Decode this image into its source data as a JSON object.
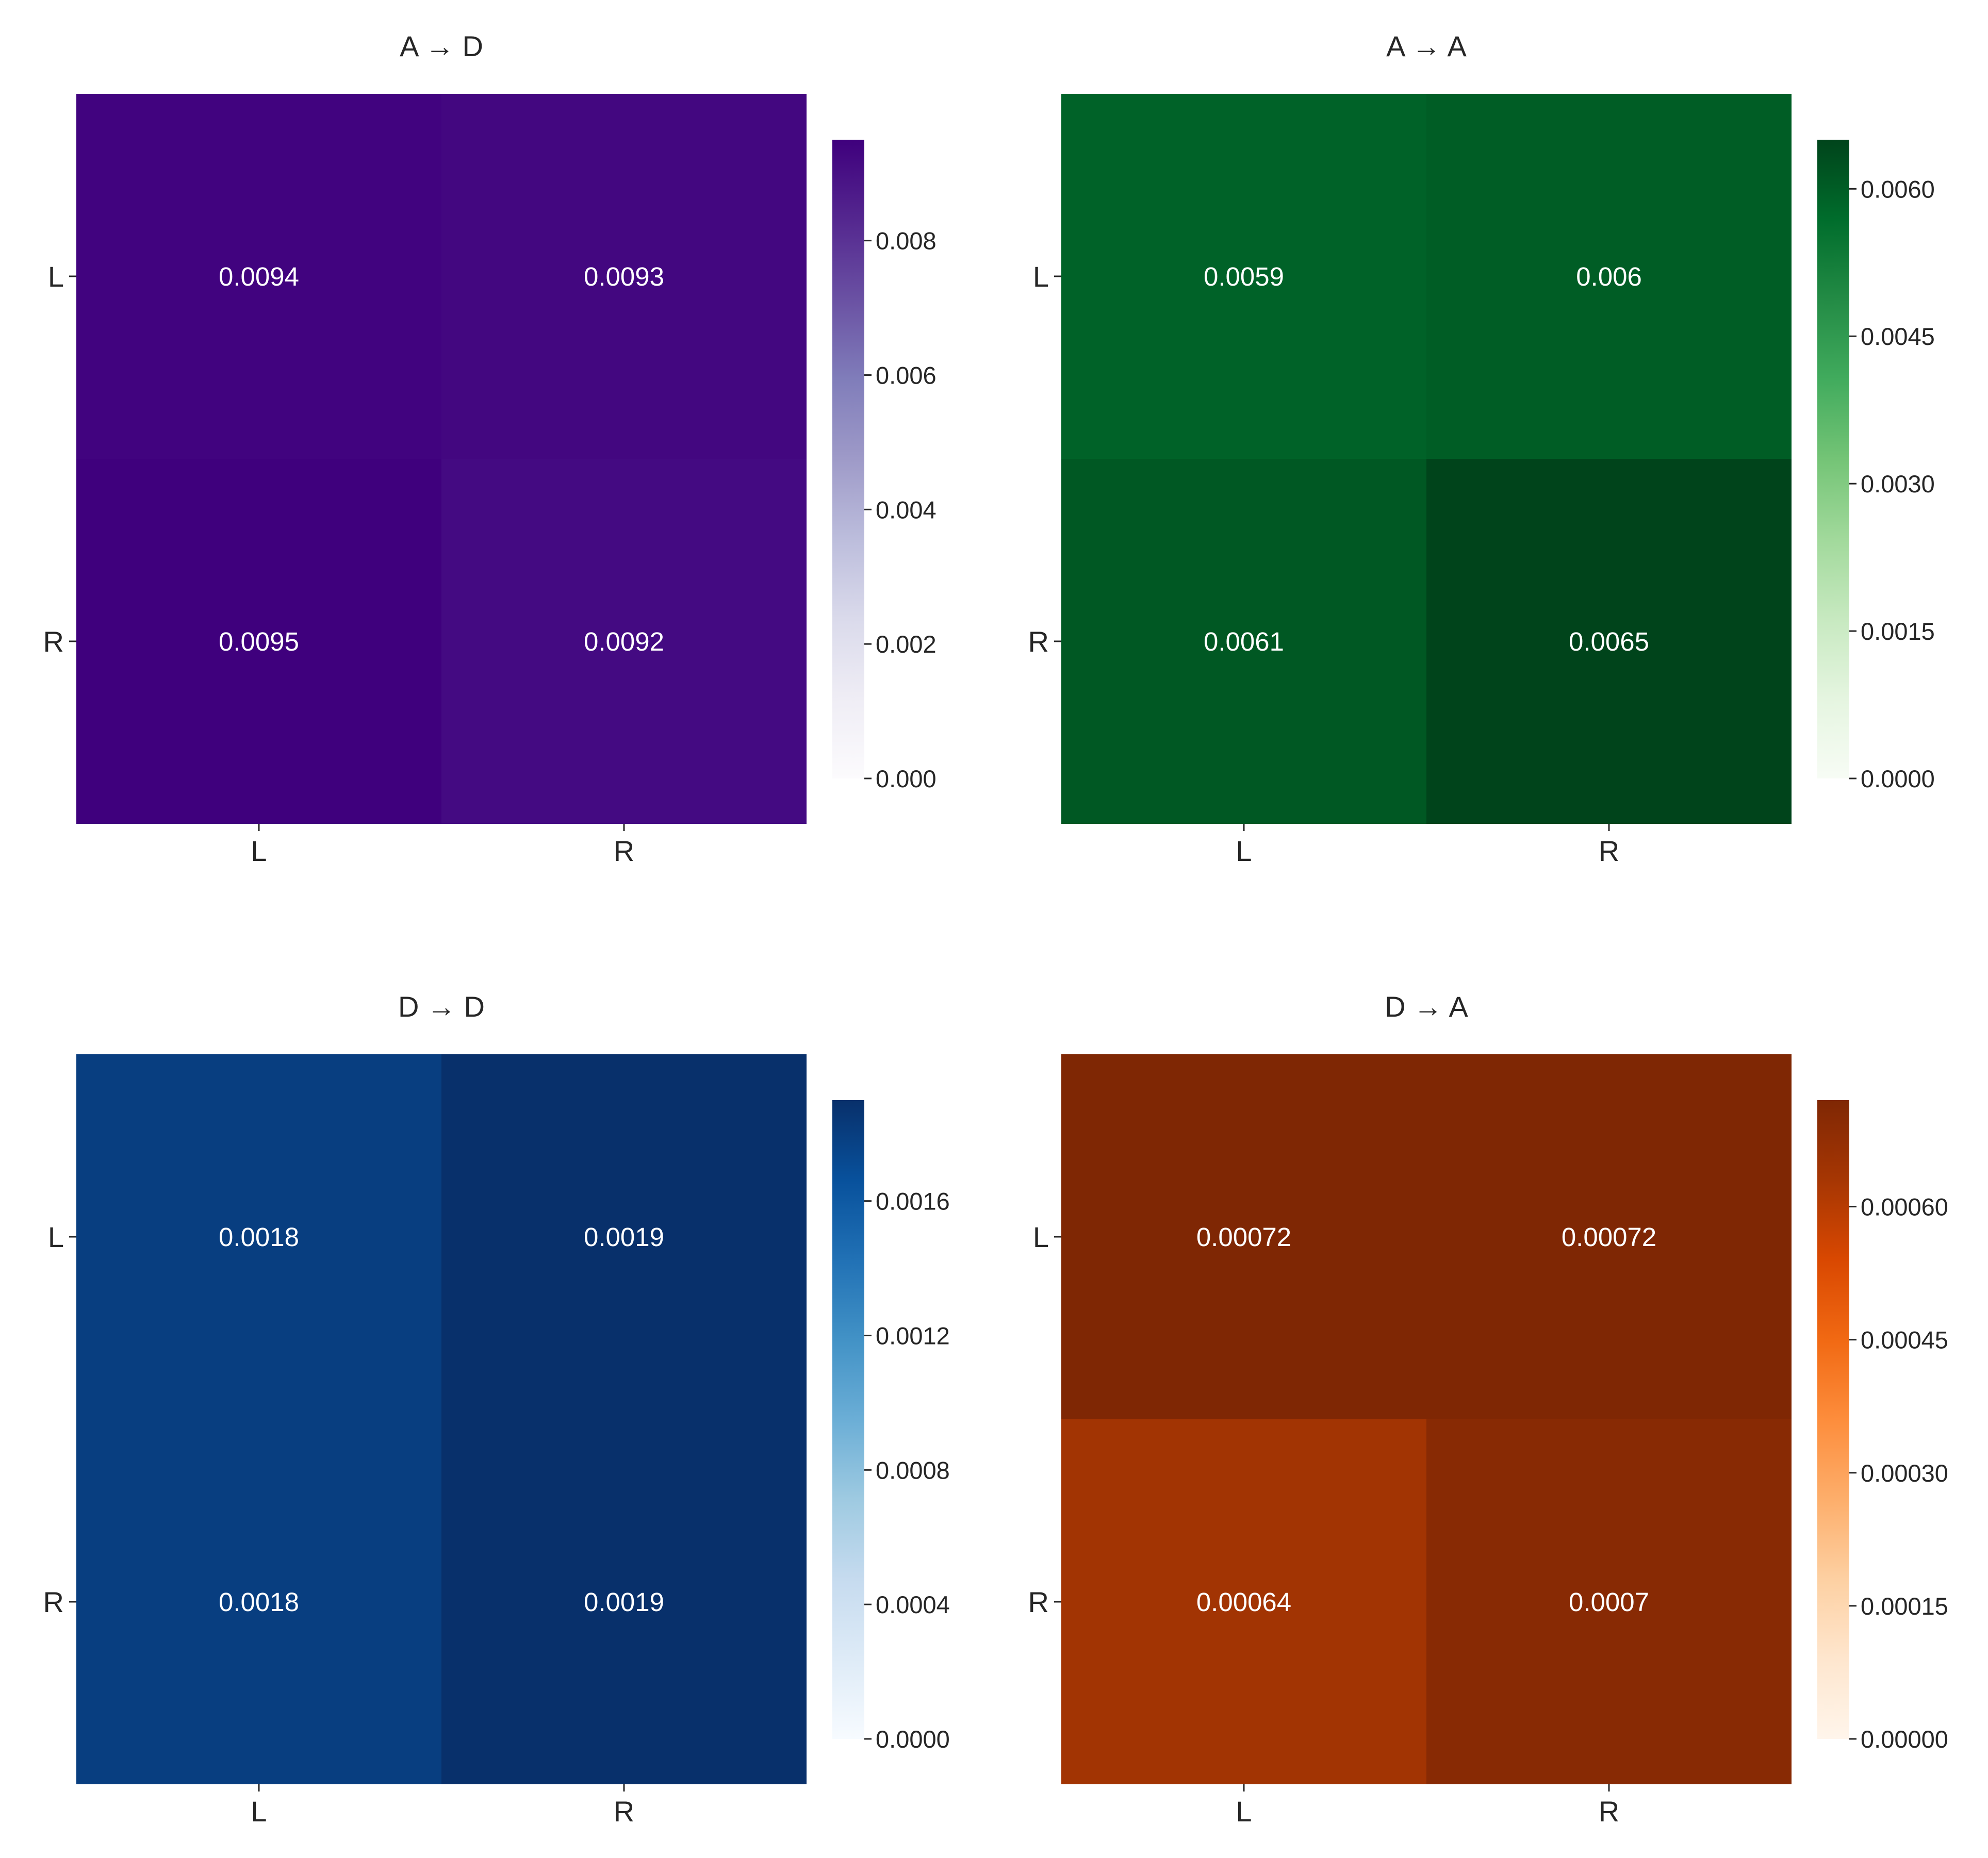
{
  "chart_data": [
    {
      "type": "heatmap",
      "title": "A → D",
      "xlabel": "",
      "ylabel": "",
      "x_categories": [
        "L",
        "R"
      ],
      "y_categories": [
        "L",
        "R"
      ],
      "values": [
        [
          0.0094,
          0.0093
        ],
        [
          0.0095,
          0.0092
        ]
      ],
      "cell_labels": [
        [
          "0.0094",
          "0.0093"
        ],
        [
          "0.0095",
          "0.0092"
        ]
      ],
      "colormap": "Purples",
      "color_range": [
        0,
        0.0095
      ],
      "colorbar_ticks": [
        0,
        0.002,
        0.004,
        0.006,
        0.008
      ],
      "colorbar_tick_labels": [
        "0.000",
        "0.002",
        "0.004",
        "0.006",
        "0.008"
      ]
    },
    {
      "type": "heatmap",
      "title": "A → A",
      "xlabel": "",
      "ylabel": "",
      "x_categories": [
        "L",
        "R"
      ],
      "y_categories": [
        "L",
        "R"
      ],
      "values": [
        [
          0.0059,
          0.006
        ],
        [
          0.0061,
          0.0065
        ]
      ],
      "cell_labels": [
        [
          "0.0059",
          "0.006"
        ],
        [
          "0.0061",
          "0.0065"
        ]
      ],
      "colormap": "Greens",
      "color_range": [
        0,
        0.0065
      ],
      "colorbar_ticks": [
        0,
        0.0015,
        0.003,
        0.0045,
        0.006
      ],
      "colorbar_tick_labels": [
        "0.0000",
        "0.0015",
        "0.0030",
        "0.0045",
        "0.0060"
      ]
    },
    {
      "type": "heatmap",
      "title": "D → D",
      "xlabel": "",
      "ylabel": "",
      "x_categories": [
        "L",
        "R"
      ],
      "y_categories": [
        "L",
        "R"
      ],
      "values": [
        [
          0.0018,
          0.0019
        ],
        [
          0.0018,
          0.0019
        ]
      ],
      "cell_labels": [
        [
          "0.0018",
          "0.0019"
        ],
        [
          "0.0018",
          "0.0019"
        ]
      ],
      "colormap": "Blues",
      "color_range": [
        0,
        0.0019
      ],
      "colorbar_ticks": [
        0,
        0.0004,
        0.0008,
        0.0012,
        0.0016
      ],
      "colorbar_tick_labels": [
        "0.0000",
        "0.0004",
        "0.0008",
        "0.0012",
        "0.0016"
      ]
    },
    {
      "type": "heatmap",
      "title": "D → A",
      "xlabel": "",
      "ylabel": "",
      "x_categories": [
        "L",
        "R"
      ],
      "y_categories": [
        "L",
        "R"
      ],
      "values": [
        [
          0.00072,
          0.00072
        ],
        [
          0.00064,
          0.0007
        ]
      ],
      "cell_labels": [
        [
          "0.00072",
          "0.00072"
        ],
        [
          "0.00064",
          "0.0007"
        ]
      ],
      "colormap": "Oranges",
      "color_range": [
        0,
        0.00072
      ],
      "colorbar_ticks": [
        0,
        0.00015,
        0.0003,
        0.00045,
        0.0006
      ],
      "colorbar_tick_labels": [
        "0.00000",
        "0.00015",
        "0.00030",
        "0.00045",
        "0.00060"
      ]
    }
  ],
  "colormaps": {
    "Purples": [
      "#fcfbfd",
      "#efedf5",
      "#dadaeb",
      "#bcbddc",
      "#9e9ac8",
      "#807dba",
      "#6a51a3",
      "#54278f",
      "#3f007d"
    ],
    "Greens": [
      "#f7fcf5",
      "#e5f5e0",
      "#c7e9c0",
      "#a1d99b",
      "#74c476",
      "#41ab5d",
      "#238b45",
      "#006d2c",
      "#00441b"
    ],
    "Blues": [
      "#f7fbff",
      "#deebf7",
      "#c6dbef",
      "#9ecae1",
      "#6baed6",
      "#4292c6",
      "#2171b5",
      "#08519c",
      "#08306b"
    ],
    "Oranges": [
      "#fff5eb",
      "#fee6ce",
      "#fdd0a2",
      "#fdae6b",
      "#fd8d3c",
      "#f16913",
      "#d94801",
      "#a63603",
      "#7f2704"
    ]
  }
}
